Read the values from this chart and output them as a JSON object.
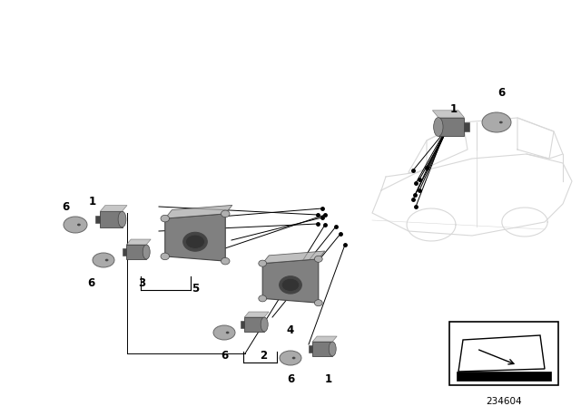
{
  "background_color": "#ffffff",
  "diagram_number": "234604",
  "fig_width": 6.4,
  "fig_height": 4.48,
  "dpi": 100,
  "car_color": "#d8d8d8",
  "car_lw": 0.8,
  "sensor_body": "#7a7a7a",
  "sensor_face": "#909090",
  "sensor_dark": "#444444",
  "sensor_light": "#b0b0b0",
  "bracket_plate": "#808080",
  "bracket_dark": "#555555",
  "disk_color": "#aaaaaa",
  "disk_edge": "#666666",
  "line_color": "#000000",
  "dot_size": 2.5,
  "label_fontsize": 8.5
}
